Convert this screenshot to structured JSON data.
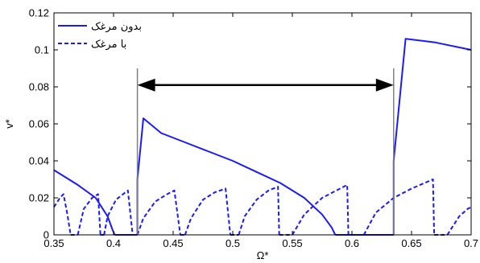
{
  "chart_data": {
    "type": "line",
    "xlabel": "Ω*",
    "ylabel": "v*",
    "xlim": [
      0.35,
      0.7
    ],
    "ylim": [
      0,
      0.12
    ],
    "x_ticks": [
      "0.35",
      "0.4",
      "0.45",
      "0.5",
      "0.55",
      "0.6",
      "0.65",
      "0.7"
    ],
    "y_ticks": [
      "0",
      "0.02",
      "0.04",
      "0.06",
      "0.08",
      "0.1",
      "0.12"
    ],
    "grid": false,
    "legend_position": "top-left",
    "colors": {
      "series": "#1a1aff",
      "marker_lines": "#808080",
      "arrow": "#000000"
    },
    "series": [
      {
        "name": "بدون مرغک",
        "style": "solid",
        "segments": [
          [
            [
              0.35,
              0.035
            ],
            [
              0.37,
              0.027
            ],
            [
              0.385,
              0.02
            ],
            [
              0.395,
              0.01
            ],
            [
              0.399,
              0.003
            ],
            [
              0.401,
              0
            ]
          ],
          [
            [
              0.401,
              0
            ],
            [
              0.42,
              0
            ]
          ],
          [
            [
              0.42,
              0.0
            ],
            [
              0.42,
              0.03
            ],
            [
              0.425,
              0.063
            ],
            [
              0.44,
              0.055
            ],
            [
              0.46,
              0.05
            ],
            [
              0.48,
              0.045
            ],
            [
              0.5,
              0.04
            ],
            [
              0.52,
              0.034
            ],
            [
              0.54,
              0.028
            ],
            [
              0.56,
              0.02
            ],
            [
              0.575,
              0.011
            ],
            [
              0.583,
              0.004
            ],
            [
              0.586,
              0
            ]
          ],
          [
            [
              0.586,
              0
            ],
            [
              0.635,
              0
            ]
          ],
          [
            [
              0.635,
              0
            ],
            [
              0.635,
              0.04
            ],
            [
              0.645,
              0.106
            ],
            [
              0.67,
              0.104
            ],
            [
              0.7,
              0.1
            ]
          ]
        ]
      },
      {
        "name": "با مرغک",
        "style": "dashed",
        "segments": [
          [
            [
              0.35,
              0.015
            ],
            [
              0.355,
              0.02
            ],
            [
              0.358,
              0.022
            ],
            [
              0.361,
              0.012
            ],
            [
              0.364,
              0
            ]
          ],
          [
            [
              0.364,
              0
            ],
            [
              0.37,
              0
            ]
          ],
          [
            [
              0.37,
              0.0
            ],
            [
              0.375,
              0.014
            ],
            [
              0.382,
              0.02
            ],
            [
              0.387,
              0.022
            ],
            [
              0.389,
              0
            ]
          ],
          [
            [
              0.389,
              0
            ],
            [
              0.392,
              0
            ]
          ],
          [
            [
              0.392,
              0.0
            ],
            [
              0.395,
              0.01
            ],
            [
              0.402,
              0.019
            ],
            [
              0.41,
              0.023
            ],
            [
              0.412,
              0.024
            ],
            [
              0.416,
              0
            ]
          ],
          [
            [
              0.416,
              0
            ],
            [
              0.42,
              0
            ]
          ],
          [
            [
              0.42,
              0
            ],
            [
              0.425,
              0.009
            ],
            [
              0.435,
              0.018
            ],
            [
              0.445,
              0.022
            ],
            [
              0.451,
              0.024
            ],
            [
              0.456,
              0
            ]
          ],
          [
            [
              0.456,
              0
            ],
            [
              0.46,
              0
            ]
          ],
          [
            [
              0.46,
              0
            ],
            [
              0.465,
              0.009
            ],
            [
              0.475,
              0.019
            ],
            [
              0.485,
              0.023
            ],
            [
              0.494,
              0.025
            ],
            [
              0.498,
              0
            ]
          ],
          [
            [
              0.498,
              0
            ],
            [
              0.505,
              0
            ]
          ],
          [
            [
              0.505,
              0
            ],
            [
              0.51,
              0.01
            ],
            [
              0.52,
              0.019
            ],
            [
              0.53,
              0.024
            ],
            [
              0.538,
              0.026
            ],
            [
              0.539,
              0
            ]
          ],
          [
            [
              0.539,
              0
            ],
            [
              0.55,
              0
            ]
          ],
          [
            [
              0.55,
              0
            ],
            [
              0.56,
              0.011
            ],
            [
              0.575,
              0.02
            ],
            [
              0.59,
              0.025
            ],
            [
              0.596,
              0.027
            ],
            [
              0.597,
              0
            ]
          ],
          [
            [
              0.597,
              0
            ],
            [
              0.61,
              0
            ]
          ],
          [
            [
              0.61,
              0
            ],
            [
              0.62,
              0.012
            ],
            [
              0.635,
              0.02
            ],
            [
              0.65,
              0.025
            ],
            [
              0.668,
              0.03
            ],
            [
              0.669,
              0
            ]
          ],
          [
            [
              0.669,
              0
            ],
            [
              0.68,
              0
            ]
          ],
          [
            [
              0.68,
              0
            ],
            [
              0.69,
              0.01
            ],
            [
              0.697,
              0.014
            ],
            [
              0.7,
              0.015
            ]
          ]
        ]
      }
    ],
    "annotations": {
      "vertical_lines": [
        0.42,
        0.635
      ],
      "vertical_line_top": 0.09,
      "arrow": {
        "x_from": 0.42,
        "x_to": 0.635,
        "y": 0.081,
        "double_headed": true
      }
    }
  }
}
